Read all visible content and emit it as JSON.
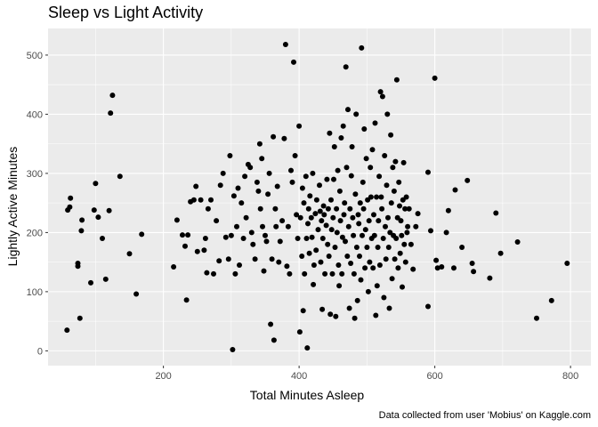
{
  "chart_data": {
    "type": "scatter",
    "title": "Sleep vs Light Activity",
    "xlabel": "Total Minutes Asleep",
    "ylabel": "Lightly Active Minutes",
    "caption": "Data collected from user 'Mobius' on Kaggle.com",
    "xlim": [
      30,
      830
    ],
    "ylim": [
      -25,
      545
    ],
    "x_ticks": [
      200,
      400,
      600,
      800
    ],
    "y_ticks": [
      0,
      100,
      200,
      300,
      400,
      500
    ],
    "x_tick_labels": [
      "200",
      "400",
      "600",
      "800"
    ],
    "y_tick_labels": [
      "0",
      "100",
      "200",
      "300",
      "400",
      "500"
    ],
    "grid": true,
    "legend": "none",
    "colors": {
      "panel": "#EBEBEB",
      "grid": "#FFFFFF",
      "point": "#000000"
    },
    "points": [
      [
        58,
        35
      ],
      [
        59,
        238
      ],
      [
        62,
        243
      ],
      [
        63,
        258
      ],
      [
        74,
        148
      ],
      [
        74,
        143
      ],
      [
        77,
        55
      ],
      [
        79,
        203
      ],
      [
        80,
        221
      ],
      [
        93,
        115
      ],
      [
        98,
        238
      ],
      [
        100,
        283
      ],
      [
        104,
        226
      ],
      [
        110,
        190
      ],
      [
        115,
        121
      ],
      [
        120,
        237
      ],
      [
        122,
        402
      ],
      [
        125,
        432
      ],
      [
        136,
        295
      ],
      [
        150,
        164
      ],
      [
        160,
        96
      ],
      [
        168,
        197
      ],
      [
        215,
        142
      ],
      [
        220,
        221
      ],
      [
        228,
        196
      ],
      [
        232,
        177
      ],
      [
        234,
        86
      ],
      [
        236,
        196
      ],
      [
        240,
        252
      ],
      [
        245,
        255
      ],
      [
        248,
        278
      ],
      [
        250,
        168
      ],
      [
        255,
        255
      ],
      [
        260,
        170
      ],
      [
        262,
        190
      ],
      [
        264,
        132
      ],
      [
        266,
        240
      ],
      [
        270,
        255
      ],
      [
        274,
        130
      ],
      [
        278,
        220
      ],
      [
        282,
        152
      ],
      [
        284,
        280
      ],
      [
        288,
        300
      ],
      [
        292,
        192
      ],
      [
        296,
        155
      ],
      [
        298,
        330
      ],
      [
        300,
        195
      ],
      [
        302,
        2
      ],
      [
        304,
        262
      ],
      [
        306,
        130
      ],
      [
        308,
        210
      ],
      [
        310,
        275
      ],
      [
        312,
        145
      ],
      [
        315,
        250
      ],
      [
        318,
        190
      ],
      [
        320,
        295
      ],
      [
        322,
        225
      ],
      [
        325,
        315
      ],
      [
        328,
        310
      ],
      [
        330,
        200
      ],
      [
        332,
        180
      ],
      [
        335,
        155
      ],
      [
        338,
        285
      ],
      [
        340,
        270
      ],
      [
        342,
        350
      ],
      [
        343,
        240
      ],
      [
        345,
        325
      ],
      [
        346,
        210
      ],
      [
        348,
        135
      ],
      [
        350,
        195
      ],
      [
        352,
        185
      ],
      [
        354,
        265
      ],
      [
        356,
        300
      ],
      [
        358,
        45
      ],
      [
        360,
        155
      ],
      [
        362,
        362
      ],
      [
        363,
        18
      ],
      [
        365,
        240
      ],
      [
        366,
        210
      ],
      [
        368,
        278
      ],
      [
        370,
        150
      ],
      [
        372,
        185
      ],
      [
        375,
        220
      ],
      [
        378,
        359
      ],
      [
        380,
        518
      ],
      [
        382,
        143
      ],
      [
        384,
        210
      ],
      [
        386,
        130
      ],
      [
        388,
        305
      ],
      [
        390,
        285
      ],
      [
        392,
        488
      ],
      [
        394,
        330
      ],
      [
        396,
        230
      ],
      [
        398,
        190
      ],
      [
        400,
        380
      ],
      [
        401,
        32
      ],
      [
        402,
        225
      ],
      [
        404,
        160
      ],
      [
        405,
        275
      ],
      [
        406,
        68
      ],
      [
        407,
        250
      ],
      [
        408,
        130
      ],
      [
        410,
        295
      ],
      [
        411,
        190
      ],
      [
        412,
        5
      ],
      [
        413,
        215
      ],
      [
        414,
        240
      ],
      [
        415,
        165
      ],
      [
        416,
        262
      ],
      [
        418,
        225
      ],
      [
        419,
        192
      ],
      [
        420,
        300
      ],
      [
        421,
        112
      ],
      [
        422,
        145
      ],
      [
        424,
        232
      ],
      [
        425,
        170
      ],
      [
        426,
        255
      ],
      [
        428,
        205
      ],
      [
        430,
        280
      ],
      [
        431,
        236
      ],
      [
        432,
        150
      ],
      [
        433,
        220
      ],
      [
        434,
        70
      ],
      [
        435,
        190
      ],
      [
        436,
        245
      ],
      [
        437,
        230
      ],
      [
        438,
        130
      ],
      [
        440,
        212
      ],
      [
        441,
        290
      ],
      [
        442,
        180
      ],
      [
        443,
        240
      ],
      [
        444,
        160
      ],
      [
        445,
        368
      ],
      [
        446,
        62
      ],
      [
        447,
        255
      ],
      [
        448,
        205
      ],
      [
        449,
        130
      ],
      [
        450,
        225
      ],
      [
        451,
        290
      ],
      [
        452,
        345
      ],
      [
        453,
        175
      ],
      [
        454,
        58
      ],
      [
        455,
        240
      ],
      [
        456,
        200
      ],
      [
        457,
        305
      ],
      [
        458,
        145
      ],
      [
        459,
        110
      ],
      [
        460,
        270
      ],
      [
        461,
        220
      ],
      [
        462,
        360
      ],
      [
        463,
        130
      ],
      [
        464,
        192
      ],
      [
        465,
        380
      ],
      [
        466,
        230
      ],
      [
        467,
        250
      ],
      [
        468,
        185
      ],
      [
        469,
        480
      ],
      [
        470,
        310
      ],
      [
        471,
        160
      ],
      [
        472,
        408
      ],
      [
        473,
        210
      ],
      [
        474,
        72
      ],
      [
        475,
        240
      ],
      [
        476,
        148
      ],
      [
        477,
        296
      ],
      [
        478,
        345
      ],
      [
        479,
        225
      ],
      [
        480,
        195
      ],
      [
        481,
        130
      ],
      [
        482,
        55
      ],
      [
        483,
        265
      ],
      [
        484,
        400
      ],
      [
        485,
        175
      ],
      [
        486,
        85
      ],
      [
        487,
        230
      ],
      [
        488,
        215
      ],
      [
        489,
        160
      ],
      [
        490,
        250
      ],
      [
        491,
        120
      ],
      [
        492,
        512
      ],
      [
        493,
        195
      ],
      [
        494,
        285
      ],
      [
        495,
        240
      ],
      [
        496,
        375
      ],
      [
        497,
        140
      ],
      [
        498,
        205
      ],
      [
        499,
        325
      ],
      [
        500,
        175
      ],
      [
        501,
        255
      ],
      [
        502,
        100
      ],
      [
        503,
        220
      ],
      [
        504,
        150
      ],
      [
        505,
        310
      ],
      [
        506,
        260
      ],
      [
        507,
        190
      ],
      [
        508,
        340
      ],
      [
        509,
        140
      ],
      [
        510,
        230
      ],
      [
        511,
        195
      ],
      [
        512,
        385
      ],
      [
        513,
        60
      ],
      [
        514,
        260
      ],
      [
        515,
        110
      ],
      [
        516,
        175
      ],
      [
        517,
        220
      ],
      [
        518,
        295
      ],
      [
        519,
        145
      ],
      [
        520,
        438
      ],
      [
        521,
        260
      ],
      [
        522,
        240
      ],
      [
        523,
        430
      ],
      [
        524,
        190
      ],
      [
        525,
        90
      ],
      [
        526,
        330
      ],
      [
        527,
        210
      ],
      [
        528,
        155
      ],
      [
        529,
        280
      ],
      [
        530,
        400
      ],
      [
        531,
        225
      ],
      [
        532,
        175
      ],
      [
        533,
        72
      ],
      [
        534,
        200
      ],
      [
        535,
        365
      ],
      [
        536,
        250
      ],
      [
        537,
        122
      ],
      [
        538,
        310
      ],
      [
        539,
        195
      ],
      [
        540,
        270
      ],
      [
        541,
        155
      ],
      [
        542,
        320
      ],
      [
        543,
        190
      ],
      [
        544,
        458
      ],
      [
        545,
        225
      ],
      [
        546,
        140
      ],
      [
        547,
        285
      ],
      [
        548,
        245
      ],
      [
        549,
        165
      ],
      [
        550,
        220
      ],
      [
        551,
        195
      ],
      [
        552,
        108
      ],
      [
        553,
        255
      ],
      [
        554,
        318
      ],
      [
        555,
        180
      ],
      [
        556,
        240
      ],
      [
        557,
        150
      ],
      [
        558,
        260
      ],
      [
        559,
        200
      ],
      [
        560,
        210
      ],
      [
        562,
        240
      ],
      [
        565,
        180
      ],
      [
        568,
        138
      ],
      [
        572,
        210
      ],
      [
        575,
        232
      ],
      [
        590,
        302
      ],
      [
        590,
        75
      ],
      [
        594,
        203
      ],
      [
        600,
        461
      ],
      [
        602,
        153
      ],
      [
        604,
        140
      ],
      [
        610,
        142
      ],
      [
        617,
        200
      ],
      [
        620,
        237
      ],
      [
        628,
        140
      ],
      [
        630,
        272
      ],
      [
        640,
        175
      ],
      [
        648,
        288
      ],
      [
        655,
        148
      ],
      [
        657,
        134
      ],
      [
        681,
        123
      ],
      [
        690,
        233
      ],
      [
        697,
        165
      ],
      [
        722,
        184
      ],
      [
        750,
        55
      ],
      [
        772,
        85
      ],
      [
        795,
        148
      ]
    ]
  }
}
